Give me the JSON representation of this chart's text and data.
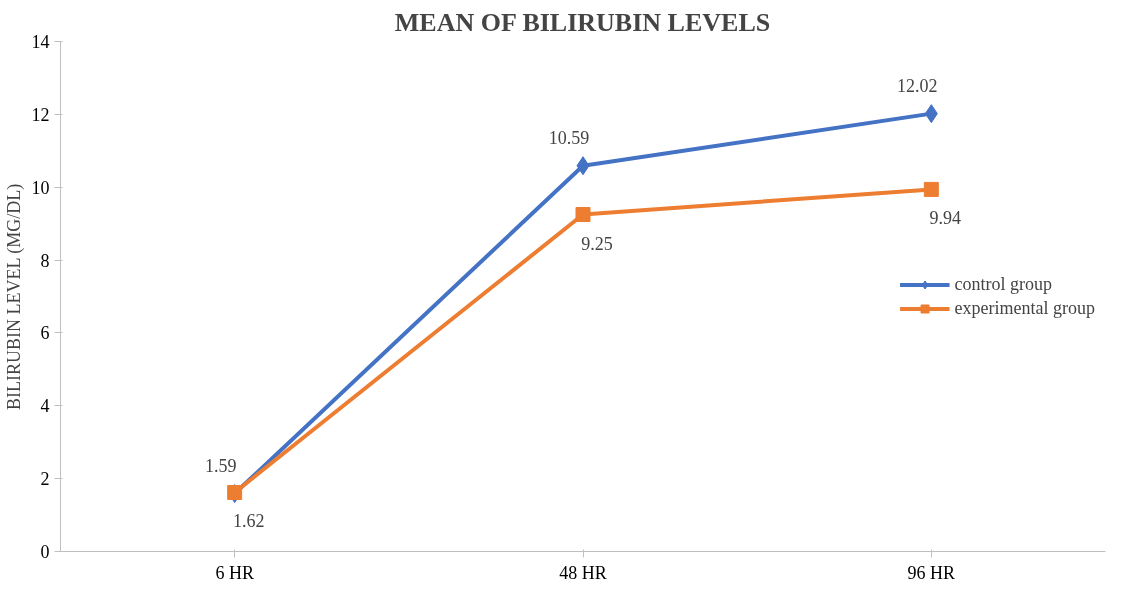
{
  "chart_data": {
    "type": "line",
    "title": "MEAN OF BILIRUBIN LEVELS",
    "ylabel": "BILIRUBIN LEVEL (MG/DL)",
    "categories": [
      "6 HR",
      "48 HR",
      "96 HR"
    ],
    "series": [
      {
        "name": "control group",
        "color": "#4472c4",
        "marker": "diamond",
        "values": [
          1.59,
          10.59,
          12.02
        ]
      },
      {
        "name": "experimental group",
        "color": "#ed7d31",
        "marker": "square",
        "values": [
          1.62,
          9.25,
          9.94
        ]
      }
    ],
    "ylim": [
      0,
      14
    ],
    "yticks": [
      0,
      2,
      4,
      6,
      8,
      10,
      12,
      14
    ],
    "grid": false,
    "legend": "right",
    "data_labels": true,
    "line_style": "solid"
  }
}
